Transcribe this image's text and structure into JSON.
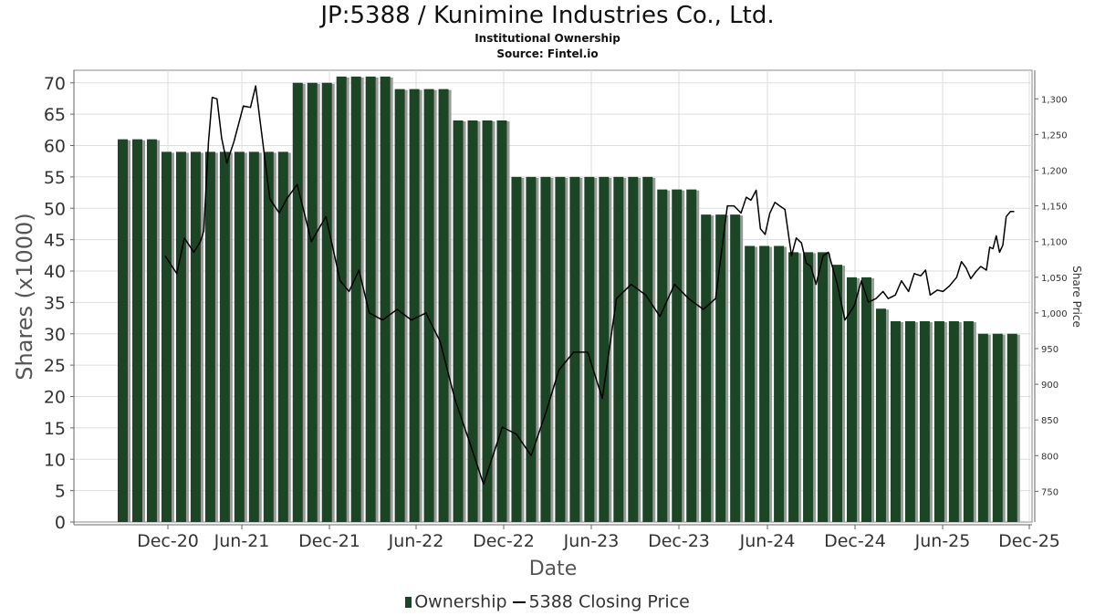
{
  "title": "JP:5388 / Kunimine Industries Co., Ltd.",
  "subtitle1": "Institutional Ownership",
  "subtitle2": "Source: Fintel.io",
  "legend": {
    "bars": "Ownership",
    "line": "5388 Closing Price"
  },
  "chart_data": {
    "type": "bar+line",
    "xlabel": "Date",
    "ylabel": "Shares (x1000)",
    "y2label": "Share Price",
    "x_ticks": [
      "Dec-20",
      "Jun-21",
      "Dec-21",
      "Jun-22",
      "Dec-22",
      "Jun-23",
      "Dec-23",
      "Jun-24",
      "Dec-24",
      "Jun-25",
      "Dec-25"
    ],
    "ylim": [
      0,
      72
    ],
    "y_ticks": [
      0,
      5,
      10,
      15,
      20,
      25,
      30,
      35,
      40,
      45,
      50,
      55,
      60,
      65,
      70
    ],
    "y2lim": [
      707,
      1340
    ],
    "y2_ticks": [
      "750",
      "800",
      "850",
      "900",
      "950",
      "1,000",
      "1,050",
      "1,100",
      "1,150",
      "1,200",
      "1,250",
      "1,300"
    ],
    "grid": true,
    "legend_position": "bottom",
    "colors": {
      "bar": "#1c4526",
      "bar_shadow": "#9a9a9a",
      "line": "#000000",
      "grid": "#dddddd",
      "axis": "#666666"
    },
    "ownership_series": {
      "name": "Ownership",
      "values": [
        61,
        61,
        61,
        59,
        59,
        59,
        59,
        59,
        59,
        59,
        59,
        59,
        70,
        70,
        70,
        71,
        71,
        71,
        71,
        69,
        69,
        69,
        69,
        64,
        64,
        64,
        64,
        55,
        55,
        55,
        55,
        55,
        55,
        55,
        55,
        55,
        55,
        53,
        53,
        53,
        49,
        49,
        49,
        44,
        44,
        44,
        43,
        43,
        43,
        41,
        39,
        39,
        34,
        32,
        32,
        32,
        32,
        32,
        32,
        30,
        30,
        30
      ]
    },
    "price_series": {
      "name": "5388 Closing Price",
      "points": [
        [
          "2020-11-25",
          1080
        ],
        [
          "2020-12-20",
          1055
        ],
        [
          "2021-01-05",
          1105
        ],
        [
          "2021-01-25",
          1085
        ],
        [
          "2021-02-08",
          1100
        ],
        [
          "2021-02-15",
          1115
        ],
        [
          "2021-02-25",
          1240
        ],
        [
          "2021-03-05",
          1302
        ],
        [
          "2021-03-15",
          1300
        ],
        [
          "2021-03-25",
          1245
        ],
        [
          "2021-04-05",
          1210
        ],
        [
          "2021-04-20",
          1240
        ],
        [
          "2021-05-10",
          1290
        ],
        [
          "2021-05-25",
          1288
        ],
        [
          "2021-06-05",
          1318
        ],
        [
          "2021-06-20",
          1240
        ],
        [
          "2021-07-05",
          1160
        ],
        [
          "2021-07-25",
          1140
        ],
        [
          "2021-08-10",
          1160
        ],
        [
          "2021-09-01",
          1180
        ],
        [
          "2021-10-01",
          1100
        ],
        [
          "2021-11-01",
          1135
        ],
        [
          "2021-12-01",
          1045
        ],
        [
          "2021-12-20",
          1030
        ],
        [
          "2022-01-10",
          1060
        ],
        [
          "2022-02-01",
          1000
        ],
        [
          "2022-03-01",
          990
        ],
        [
          "2022-04-01",
          1005
        ],
        [
          "2022-05-01",
          990
        ],
        [
          "2022-06-01",
          1000
        ],
        [
          "2022-07-01",
          960
        ],
        [
          "2022-08-01",
          880
        ],
        [
          "2022-09-01",
          820
        ],
        [
          "2022-10-01",
          760
        ],
        [
          "2022-11-10",
          840
        ],
        [
          "2022-12-10",
          830
        ],
        [
          "2023-01-10",
          800
        ],
        [
          "2023-02-10",
          860
        ],
        [
          "2023-03-10",
          920
        ],
        [
          "2023-04-10",
          945
        ],
        [
          "2023-05-10",
          945
        ],
        [
          "2023-06-10",
          880
        ],
        [
          "2023-07-10",
          1020
        ],
        [
          "2023-08-10",
          1040
        ],
        [
          "2023-09-10",
          1025
        ],
        [
          "2023-10-10",
          995
        ],
        [
          "2023-11-10",
          1040
        ],
        [
          "2023-12-10",
          1020
        ],
        [
          "2024-01-10",
          1005
        ],
        [
          "2024-02-05",
          1020
        ],
        [
          "2024-03-01",
          1150
        ],
        [
          "2024-03-15",
          1150
        ],
        [
          "2024-03-30",
          1140
        ],
        [
          "2024-04-10",
          1162
        ],
        [
          "2024-04-20",
          1158
        ],
        [
          "2024-05-01",
          1172
        ],
        [
          "2024-05-10",
          1118
        ],
        [
          "2024-05-20",
          1110
        ],
        [
          "2024-05-30",
          1140
        ],
        [
          "2024-06-10",
          1155
        ],
        [
          "2024-06-20",
          1150
        ],
        [
          "2024-07-01",
          1145
        ],
        [
          "2024-07-15",
          1080
        ],
        [
          "2024-07-25",
          1105
        ],
        [
          "2024-08-05",
          1098
        ],
        [
          "2024-08-15",
          1070
        ],
        [
          "2024-08-25",
          1065
        ],
        [
          "2024-09-05",
          1040
        ],
        [
          "2024-09-20",
          1080
        ],
        [
          "2024-10-01",
          1085
        ],
        [
          "2024-10-20",
          1040
        ],
        [
          "2024-11-05",
          990
        ],
        [
          "2024-11-25",
          1010
        ],
        [
          "2024-12-10",
          1045
        ],
        [
          "2024-12-25",
          1015
        ],
        [
          "2025-01-10",
          1020
        ],
        [
          "2025-01-25",
          1030
        ],
        [
          "2025-02-05",
          1020
        ],
        [
          "2025-02-20",
          1025
        ],
        [
          "2025-03-05",
          1045
        ],
        [
          "2025-03-20",
          1030
        ],
        [
          "2025-04-01",
          1055
        ],
        [
          "2025-04-15",
          1052
        ],
        [
          "2025-04-25",
          1060
        ],
        [
          "2025-05-05",
          1025
        ],
        [
          "2025-05-20",
          1032
        ],
        [
          "2025-06-01",
          1030
        ],
        [
          "2025-06-15",
          1038
        ],
        [
          "2025-06-30",
          1050
        ],
        [
          "2025-07-10",
          1072
        ],
        [
          "2025-07-20",
          1063
        ],
        [
          "2025-07-30",
          1048
        ],
        [
          "2025-08-10",
          1058
        ],
        [
          "2025-08-20",
          1065
        ],
        [
          "2025-09-01",
          1060
        ],
        [
          "2025-09-08",
          1092
        ],
        [
          "2025-09-15",
          1090
        ],
        [
          "2025-09-22",
          1108
        ],
        [
          "2025-09-29",
          1085
        ],
        [
          "2025-10-06",
          1095
        ],
        [
          "2025-10-13",
          1135
        ],
        [
          "2025-10-22",
          1142
        ],
        [
          "2025-10-30",
          1142
        ]
      ]
    }
  }
}
